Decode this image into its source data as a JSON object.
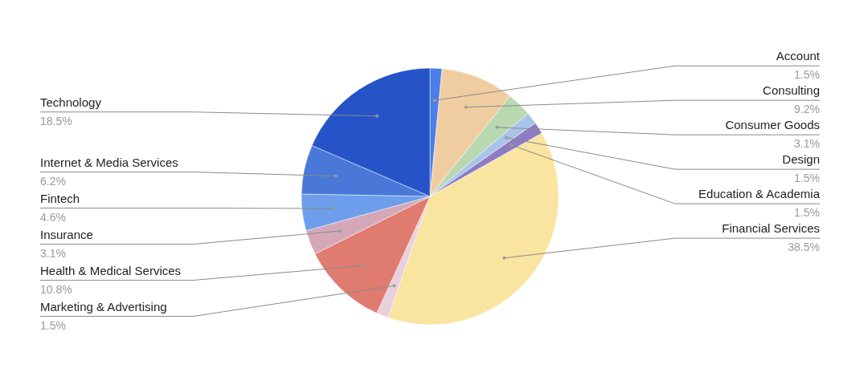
{
  "chart_data": {
    "type": "pie",
    "categories": [
      "Account",
      "Consulting",
      "Consumer Goods",
      "Design",
      "Education & Academia",
      "Financial Services",
      "Marketing & Advertising",
      "Health & Medical Services",
      "Insurance",
      "Fintech",
      "Internet & Media Services",
      "Technology"
    ],
    "values": [
      1.5,
      9.2,
      3.1,
      1.5,
      1.5,
      38.5,
      1.5,
      10.8,
      3.1,
      4.6,
      6.2,
      18.5
    ],
    "value_labels": [
      "1.5%",
      "9.2%",
      "3.1%",
      "1.5%",
      "1.5%",
      "38.5%",
      "1.5%",
      "10.8%",
      "3.1%",
      "4.6%",
      "6.2%",
      "18.5%"
    ],
    "colors": [
      "#4a7fe8",
      "#f0cda0",
      "#b8d8b0",
      "#a8c4e8",
      "#8e7cc3",
      "#f9e4a0",
      "#e8d0dc",
      "#e07b70",
      "#d4a8b8",
      "#6d9eeb",
      "#4a78d8",
      "#2653c8"
    ]
  }
}
